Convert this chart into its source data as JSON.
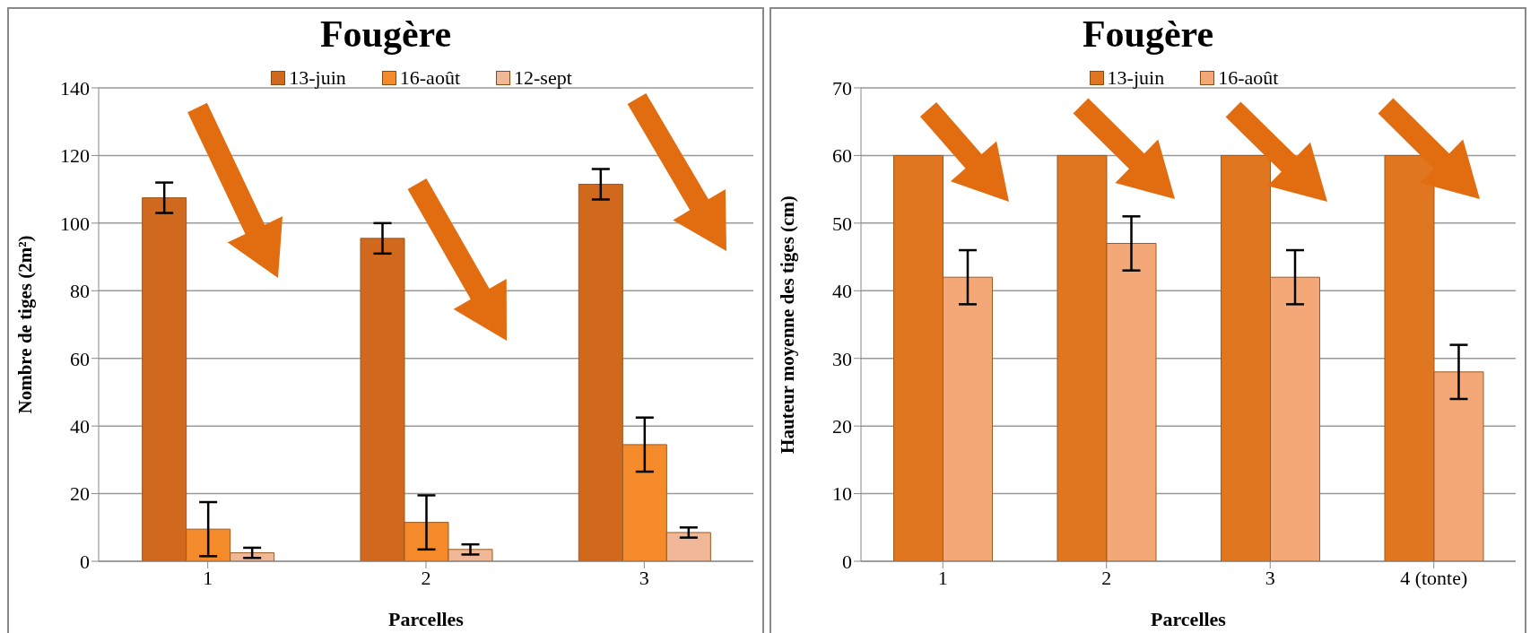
{
  "chart_data": [
    {
      "type": "bar",
      "title": "Fougère",
      "xlabel": "Parcelles",
      "ylabel": "Nombre de tiges (2m²)",
      "categories": [
        "1",
        "2",
        "3"
      ],
      "ylim": [
        0,
        140
      ],
      "yticks": [
        0,
        20,
        40,
        60,
        80,
        100,
        120,
        140
      ],
      "grid": "y",
      "legend": "top",
      "series": [
        {
          "name": "13-juin",
          "color": "#d0681e",
          "values": [
            107.5,
            95.5,
            111.5
          ],
          "errors": [
            4.5,
            4.5,
            4.5
          ]
        },
        {
          "name": "16-août",
          "color": "#f58a2a",
          "values": [
            9.5,
            11.5,
            34.5
          ],
          "errors": [
            8,
            8,
            8
          ]
        },
        {
          "name": "12-sept",
          "color": "#f0b898",
          "values": [
            2.5,
            3.5,
            8.5
          ],
          "errors": [
            1.5,
            1.5,
            1.5
          ]
        }
      ]
    },
    {
      "type": "bar",
      "title": "Fougère",
      "xlabel": "Parcelles",
      "ylabel": "Hauteur moyenne des tiges (cm)",
      "categories": [
        "1",
        "2",
        "3",
        "4 (tonte)"
      ],
      "ylim": [
        0,
        70
      ],
      "yticks": [
        0,
        10,
        20,
        30,
        40,
        50,
        60,
        70
      ],
      "grid": "y",
      "legend": "top",
      "series": [
        {
          "name": "13-juin",
          "color": "#e0761f",
          "values": [
            60,
            60,
            60,
            60
          ],
          "errors": [
            0,
            0,
            0,
            0
          ]
        },
        {
          "name": "16-août",
          "color": "#f5a877",
          "values": [
            42,
            47,
            42,
            28
          ],
          "errors": [
            4,
            4,
            4,
            4
          ]
        }
      ]
    }
  ]
}
